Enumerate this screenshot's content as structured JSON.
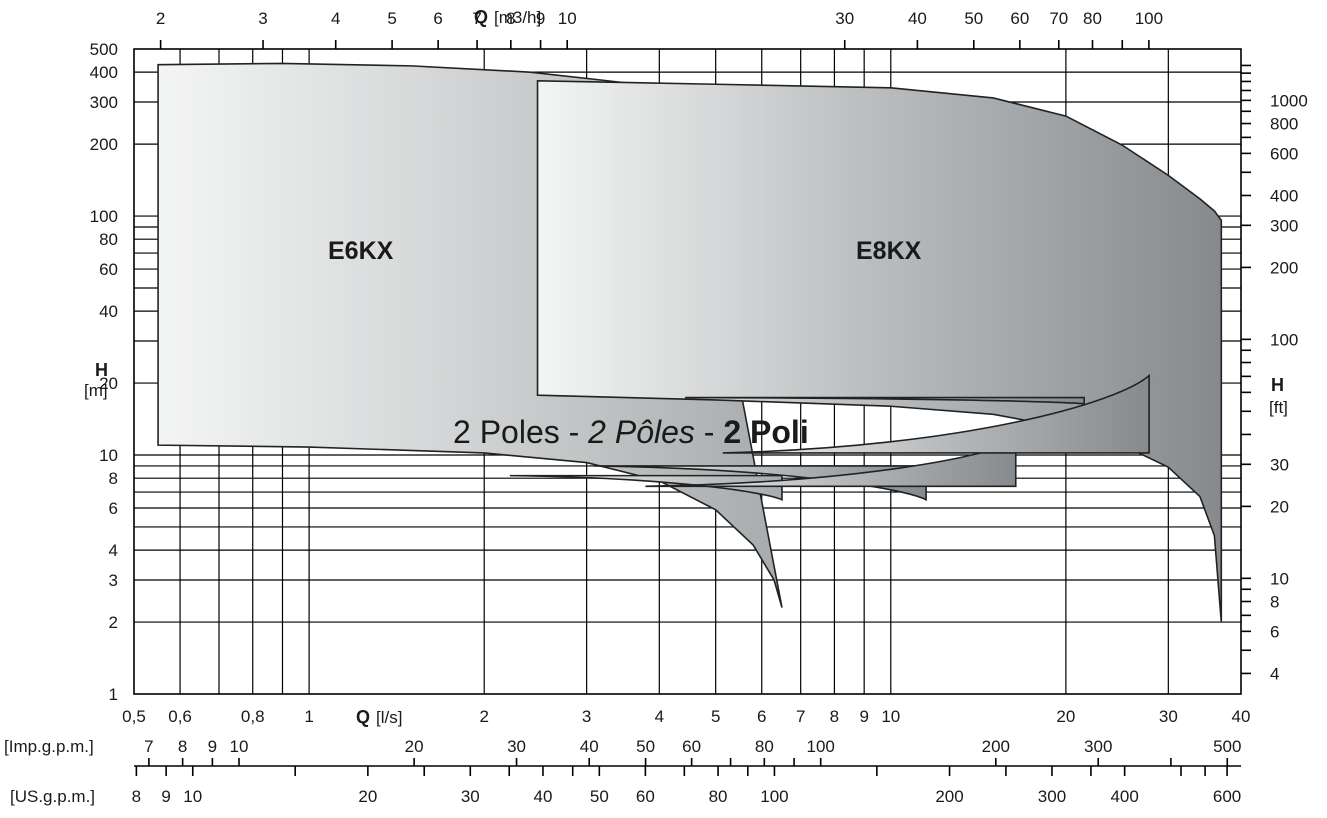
{
  "chart_data": {
    "type": "area",
    "x_axis_main": {
      "quantity": "Q",
      "unit": "[l/s]",
      "scale": "log",
      "range": [
        0.5,
        40
      ],
      "ticks": [
        0.5,
        0.6,
        0.8,
        1,
        2,
        3,
        4,
        5,
        6,
        7,
        8,
        9,
        10,
        20,
        30,
        40
      ],
      "tick_labels": [
        "0,5",
        "0,6",
        "0,8",
        "1",
        "2",
        "3",
        "4",
        "5",
        "6",
        "7",
        "8",
        "9",
        "10",
        "20",
        "30",
        "40"
      ],
      "grid_lines": [
        0.6,
        0.7,
        0.8,
        0.9,
        1,
        2,
        3,
        4,
        5,
        6,
        7,
        8,
        9,
        10,
        20,
        30
      ]
    },
    "x_axis_top": {
      "quantity": "Q",
      "unit": "[m3/h]",
      "ticks": [
        2,
        3,
        4,
        5,
        6,
        7,
        8,
        9,
        10,
        30,
        40,
        50,
        60,
        70,
        80,
        100
      ],
      "tick_labels": [
        "2",
        "3",
        "4",
        "5",
        "6",
        "7",
        "8",
        "9",
        "10",
        "30",
        "40",
        "50",
        "60",
        "70",
        "80",
        "100"
      ],
      "minor_ticks": [
        90
      ]
    },
    "x_axis_imp": {
      "label": "[Imp.g.p.m.]",
      "ticks": [
        7,
        8,
        9,
        10,
        20,
        30,
        40,
        50,
        60,
        80,
        100,
        200,
        300,
        500
      ],
      "tick_labels": [
        "7",
        "8",
        "9",
        "10",
        "20",
        "30",
        "40",
        "50",
        "60",
        "80",
        "100",
        "200",
        "300",
        "500"
      ],
      "minor_ticks": [
        70,
        90,
        400
      ]
    },
    "x_axis_us": {
      "label": "[US.g.p.m.]",
      "ticks": [
        8,
        9,
        10,
        20,
        30,
        40,
        50,
        60,
        80,
        100,
        200,
        300,
        400,
        600
      ],
      "tick_labels": [
        "8",
        "9",
        "10",
        "20",
        "30",
        "40",
        "50",
        "60",
        "80",
        "100",
        "200",
        "300",
        "400",
        "600"
      ],
      "minor_ticks": [
        15,
        25,
        35,
        45,
        70,
        90,
        150,
        250,
        350,
        500,
        550
      ]
    },
    "y_axis_left": {
      "quantity": "H",
      "unit": "[m]",
      "scale": "log",
      "range": [
        1,
        500
      ],
      "ticks": [
        1,
        2,
        3,
        4,
        6,
        8,
        10,
        20,
        40,
        60,
        80,
        100,
        200,
        300,
        400,
        500
      ],
      "tick_labels": [
        "1",
        "2",
        "3",
        "4",
        "6",
        "8",
        "10",
        "20",
        "40",
        "60",
        "80",
        "100",
        "200",
        "300",
        "400",
        "500"
      ],
      "grid_lines": [
        2,
        3,
        4,
        5,
        6,
        7,
        8,
        9,
        10,
        20,
        30,
        40,
        50,
        60,
        70,
        80,
        90,
        100,
        200,
        300,
        400
      ]
    },
    "y_axis_right": {
      "quantity": "H",
      "unit": "[ft]",
      "ticks": [
        4,
        6,
        8,
        10,
        20,
        30,
        100,
        200,
        300,
        400,
        600,
        800,
        1000
      ],
      "tick_labels": [
        "4",
        "6",
        "8",
        "10",
        "20",
        "30",
        "100",
        "200",
        "300",
        "400",
        "600",
        "800",
        "1000"
      ],
      "minor_ticks": [
        5,
        7,
        9,
        40,
        50,
        60,
        70,
        80,
        90,
        500,
        700,
        900,
        1100,
        1200,
        1300,
        1400
      ]
    },
    "series": [
      {
        "name": "E6KX",
        "color": "#d4d6d7",
        "top": [
          [
            0.55,
            430
          ],
          [
            0.9,
            435
          ],
          [
            1.5,
            425
          ],
          [
            2.4,
            400
          ],
          [
            3.2,
            370
          ],
          [
            3.9,
            350
          ],
          [
            4.4,
            335
          ]
        ],
        "bottom": [
          [
            0.55,
            11.0
          ],
          [
            1.0,
            10.8
          ],
          [
            2.0,
            10.2
          ],
          [
            3.0,
            9.3
          ],
          [
            4.0,
            7.8
          ],
          [
            5.0,
            5.9
          ],
          [
            5.8,
            4.2
          ],
          [
            6.3,
            3.0
          ],
          [
            6.5,
            2.3
          ]
        ],
        "teeth": [
          [
            6.5,
            8.2,
            6.5
          ]
        ]
      },
      {
        "name": "E8KX",
        "color": "#b9bcbe",
        "top": [
          [
            2.47,
            368
          ],
          [
            5,
            356
          ],
          [
            10,
            344
          ],
          [
            15,
            312
          ],
          [
            20,
            262
          ],
          [
            25,
            198
          ],
          [
            30,
            148
          ],
          [
            34,
            118
          ],
          [
            36,
            105
          ],
          [
            37,
            96
          ]
        ],
        "bottom": [
          [
            2.47,
            17.8
          ],
          [
            5,
            17.0
          ],
          [
            10,
            16.0
          ],
          [
            15,
            14.8
          ],
          [
            20,
            13.0
          ],
          [
            25,
            11.0
          ],
          [
            30,
            8.9
          ],
          [
            34,
            6.7
          ],
          [
            36,
            4.6
          ],
          [
            37,
            2.0
          ]
        ],
        "teeth": [
          [
            11.5,
            9.0,
            6.5
          ],
          [
            16.4,
            7.4,
            11.5
          ],
          [
            21.5,
            17.4,
            16.4
          ],
          [
            27.8,
            10.2,
            21.5
          ]
        ]
      }
    ]
  },
  "labels": {
    "top_axis_q": "Q",
    "top_axis_unit": "[m3/h]",
    "bottom_axis_q": "Q",
    "bottom_axis_unit": "[l/s]",
    "left_h": "H",
    "left_unit": "[m]",
    "right_h": "H",
    "right_unit": "[ft]",
    "imp_label": "[Imp.g.p.m.]",
    "us_label": "[US.g.p.m.]",
    "e6_label": "E6KX",
    "e8_label": "E8KX",
    "poles_a": "2 Poles - ",
    "poles_b": "2 Pôles",
    "poles_c": " - ",
    "poles_d": "2 Poli"
  }
}
